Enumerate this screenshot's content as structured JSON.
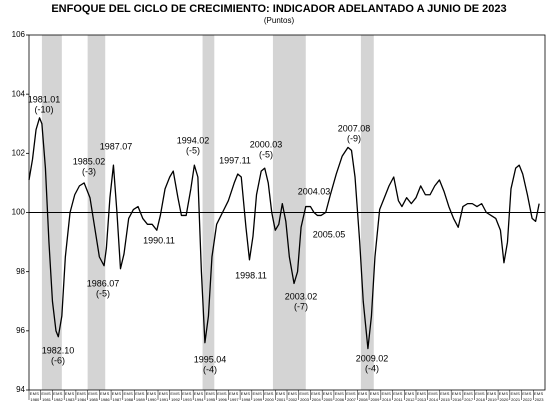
{
  "chart_data": {
    "type": "line",
    "title": "ENFOQUE DEL CICLO DE CRECIMIENTO: INDICADOR ADELANTADO A JUNIO DE 2023",
    "subtitle": "(Puntos)",
    "x": [
      1980.0,
      1980.3,
      1980.6,
      1980.9,
      1981.1,
      1981.4,
      1981.7,
      1982.0,
      1982.3,
      1982.5,
      1982.8,
      1983.1,
      1983.5,
      1983.9,
      1984.3,
      1984.7,
      1985.2,
      1985.6,
      1986.0,
      1986.4,
      1986.6,
      1986.9,
      1987.2,
      1987.5,
      1987.8,
      1988.1,
      1988.5,
      1988.9,
      1989.3,
      1989.7,
      1990.1,
      1990.5,
      1990.9,
      1991.2,
      1991.6,
      1992.0,
      1992.3,
      1992.7,
      1993.0,
      1993.4,
      1993.8,
      1994.1,
      1994.4,
      1994.7,
      1995.0,
      1995.3,
      1995.6,
      1996.0,
      1996.5,
      1997.0,
      1997.5,
      1997.8,
      1998.1,
      1998.5,
      1998.8,
      1999.1,
      1999.4,
      1999.8,
      2000.1,
      2000.4,
      2000.7,
      2001.0,
      2001.3,
      2001.6,
      2001.9,
      2002.2,
      2002.6,
      2002.9,
      2003.2,
      2003.6,
      2004.0,
      2004.3,
      2004.6,
      2004.9,
      2005.3,
      2005.7,
      2006.2,
      2006.7,
      2007.2,
      2007.5,
      2007.8,
      2008.2,
      2008.5,
      2008.9,
      2009.2,
      2009.5,
      2009.9,
      2010.3,
      2010.7,
      2011.1,
      2011.5,
      2011.8,
      2012.2,
      2012.6,
      2013.0,
      2013.4,
      2013.8,
      2014.2,
      2014.6,
      2015.0,
      2015.4,
      2015.8,
      2016.2,
      2016.6,
      2017.0,
      2017.4,
      2017.8,
      2018.2,
      2018.6,
      2019.0,
      2019.4,
      2019.8,
      2020.2,
      2020.5,
      2020.8,
      2021.1,
      2021.5,
      2021.8,
      2022.1,
      2022.5,
      2022.9,
      2023.2,
      2023.5
    ],
    "series": [
      {
        "color": "#000000",
        "values": [
          101.1,
          101.8,
          102.8,
          103.2,
          103.0,
          101.5,
          99.0,
          97.0,
          96.0,
          95.8,
          96.5,
          98.5,
          100.0,
          100.6,
          100.9,
          101.0,
          100.5,
          99.5,
          98.5,
          98.2,
          98.8,
          100.5,
          101.6,
          100.0,
          98.1,
          98.6,
          99.8,
          100.1,
          100.2,
          99.8,
          99.6,
          99.6,
          99.4,
          99.9,
          100.8,
          101.2,
          101.4,
          100.5,
          99.9,
          99.9,
          100.8,
          101.6,
          101.2,
          98.0,
          95.6,
          96.5,
          98.5,
          99.6,
          100.0,
          100.4,
          101.0,
          101.3,
          101.2,
          99.5,
          98.4,
          99.2,
          100.6,
          101.4,
          101.5,
          101.0,
          100.0,
          99.4,
          99.6,
          100.3,
          99.7,
          98.5,
          97.6,
          98.0,
          99.5,
          100.2,
          100.2,
          100.0,
          99.9,
          99.9,
          100.0,
          100.6,
          101.3,
          101.9,
          102.2,
          102.1,
          101.2,
          99.0,
          97.0,
          95.4,
          96.5,
          98.5,
          100.1,
          100.5,
          100.9,
          101.2,
          100.4,
          100.2,
          100.5,
          100.3,
          100.5,
          100.9,
          100.6,
          100.6,
          100.9,
          101.1,
          100.7,
          100.2,
          99.8,
          99.5,
          100.2,
          100.3,
          100.3,
          100.2,
          100.3,
          100.0,
          99.9,
          99.8,
          99.4,
          98.3,
          99.0,
          100.8,
          101.5,
          101.6,
          101.3,
          100.6,
          99.8,
          99.7,
          100.3
        ]
      }
    ],
    "xlim": [
      1980,
      2024
    ],
    "xticks": [
      1980,
      1981,
      1982,
      1983,
      1984,
      1985,
      1986,
      1987,
      1988,
      1989,
      1990,
      1991,
      1992,
      1993,
      1994,
      1995,
      1996,
      1997,
      1998,
      1999,
      2000,
      2001,
      2002,
      2003,
      2004,
      2005,
      2006,
      2007,
      2008,
      2009,
      2010,
      2011,
      2012,
      2013,
      2014,
      2015,
      2016,
      2017,
      2018,
      2019,
      2020,
      2021,
      2022,
      2023
    ],
    "month_labels": [
      "E",
      "M",
      "S"
    ],
    "ylim": [
      94,
      106
    ],
    "yticks": [
      94,
      96,
      98,
      100,
      102,
      104,
      106
    ],
    "refline": 100,
    "shaded": [
      [
        1981.1,
        1982.8
      ],
      [
        1985.0,
        1986.5
      ],
      [
        1994.8,
        1995.8
      ],
      [
        2000.8,
        2003.6
      ],
      [
        2008.3,
        2009.4
      ]
    ],
    "annotations": [
      {
        "lines": [
          "1981.01",
          "(-10)"
        ]
      },
      {
        "lines": [
          "1982.10",
          "(-6)"
        ]
      },
      {
        "lines": [
          "1985.02",
          "(-3)"
        ]
      },
      {
        "lines": [
          "1986.07",
          "(-5)"
        ]
      },
      {
        "lines": [
          "1987.07"
        ]
      },
      {
        "lines": [
          "1990.11"
        ]
      },
      {
        "lines": [
          "1994.02",
          "(-5)"
        ]
      },
      {
        "lines": [
          "1995.04",
          "(-4)"
        ]
      },
      {
        "lines": [
          "1997.11"
        ]
      },
      {
        "lines": [
          "1998.11"
        ]
      },
      {
        "lines": [
          "2000.03",
          "(-5)"
        ]
      },
      {
        "lines": [
          "2003.02",
          "(-7)"
        ]
      },
      {
        "lines": [
          "2004.03"
        ]
      },
      {
        "lines": [
          "2005.05"
        ]
      },
      {
        "lines": [
          "2007.08",
          "(-9)"
        ]
      },
      {
        "lines": [
          "2009.02",
          "(-4)"
        ]
      }
    ]
  }
}
